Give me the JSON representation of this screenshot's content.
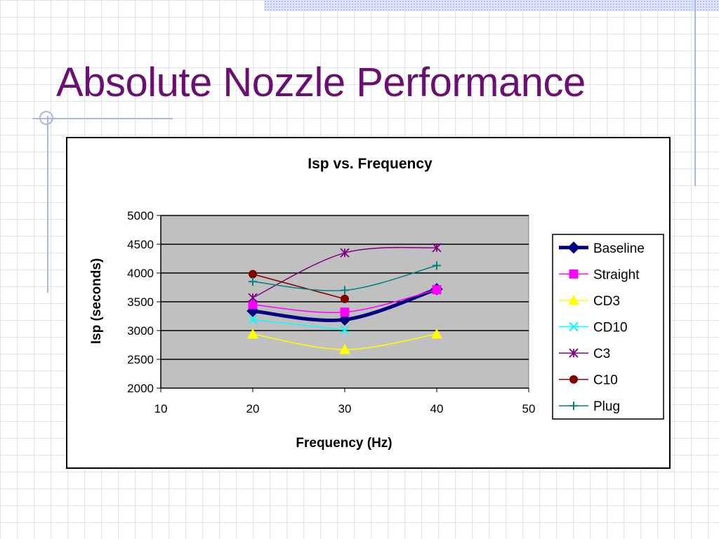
{
  "slide": {
    "title": "Absolute Nozzle Performance"
  },
  "chart_data": {
    "type": "line",
    "title": "Isp vs. Frequency",
    "xlabel": "Frequency (Hz)",
    "ylabel": "Isp (seconds)",
    "xlim": [
      10,
      50
    ],
    "ylim": [
      2000,
      5000
    ],
    "x_ticks": [
      "10",
      "20",
      "30",
      "40",
      "50"
    ],
    "y_ticks": [
      "2000",
      "2500",
      "3000",
      "3500",
      "4000",
      "4500",
      "5000"
    ],
    "grid": "horizontal",
    "plot_background": "#c0c0c0",
    "legend_position": "right",
    "series": [
      {
        "name": "Baseline",
        "x": [
          20,
          30,
          40
        ],
        "values": [
          3340,
          3190,
          3720
        ],
        "color": "#000080",
        "marker": "diamond",
        "line_width": 5
      },
      {
        "name": "Straight",
        "x": [
          20,
          30,
          40
        ],
        "values": [
          3450,
          3320,
          3710
        ],
        "color": "#ff00ff",
        "marker": "square",
        "line_width": 1.5
      },
      {
        "name": "CD3",
        "x": [
          20,
          30,
          40
        ],
        "values": [
          2940,
          2670,
          2940
        ],
        "color": "#ffff00",
        "marker": "triangle",
        "line_width": 1.5
      },
      {
        "name": "CD10",
        "x": [
          20,
          30
        ],
        "values": [
          3190,
          3010
        ],
        "color": "#00ffff",
        "marker": "x",
        "line_width": 1.5
      },
      {
        "name": "C3",
        "x": [
          20,
          30,
          40
        ],
        "values": [
          3570,
          4350,
          4440
        ],
        "color": "#800080",
        "marker": "star",
        "line_width": 1.5
      },
      {
        "name": "C10",
        "x": [
          20,
          30
        ],
        "values": [
          3980,
          3550
        ],
        "color": "#800000",
        "marker": "circle",
        "line_width": 1.5
      },
      {
        "name": "Plug",
        "x": [
          20,
          30,
          40
        ],
        "values": [
          3850,
          3700,
          4130
        ],
        "color": "#008080",
        "marker": "plus",
        "line_width": 1.5
      }
    ]
  }
}
